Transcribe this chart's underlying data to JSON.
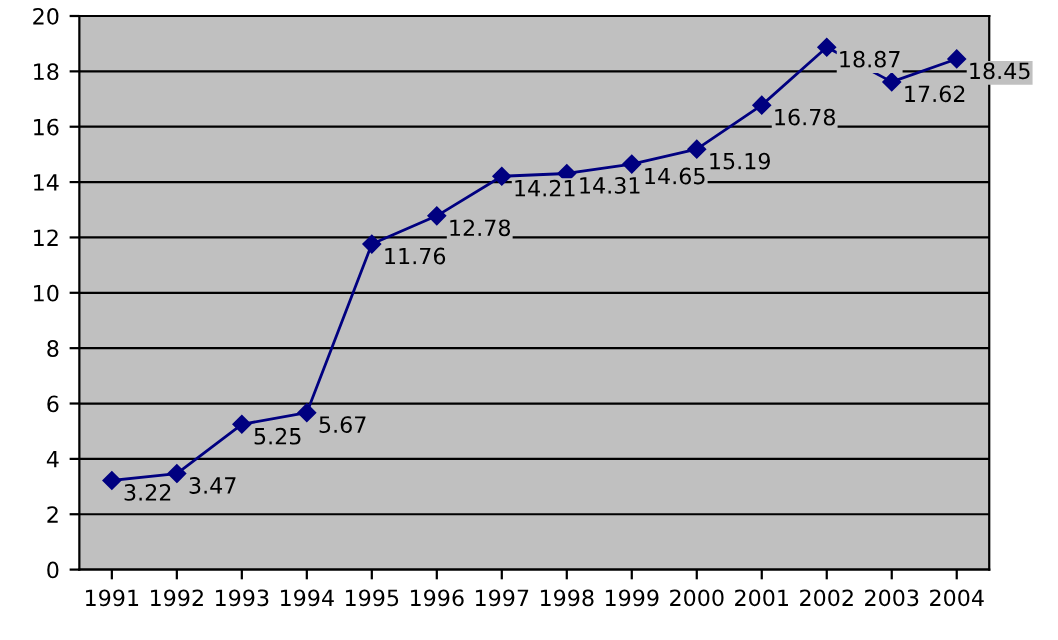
{
  "chart_data": {
    "type": "line",
    "categories": [
      "1991",
      "1992",
      "1993",
      "1994",
      "1995",
      "1996",
      "1997",
      "1998",
      "1999",
      "2000",
      "2001",
      "2002",
      "2003",
      "2004"
    ],
    "series": [
      {
        "color": "#000080",
        "values": [
          3.22,
          3.47,
          5.25,
          5.67,
          11.76,
          12.78,
          14.21,
          14.31,
          14.65,
          15.19,
          16.78,
          18.87,
          17.62,
          18.45
        ]
      }
    ],
    "ylim": [
      0,
      20
    ],
    "yticks": [
      0,
      2,
      4,
      6,
      8,
      10,
      12,
      14,
      16,
      18,
      20
    ],
    "grid": "y",
    "marker": "diamond",
    "line_style": "solid",
    "data_labels": true,
    "legend": false
  }
}
